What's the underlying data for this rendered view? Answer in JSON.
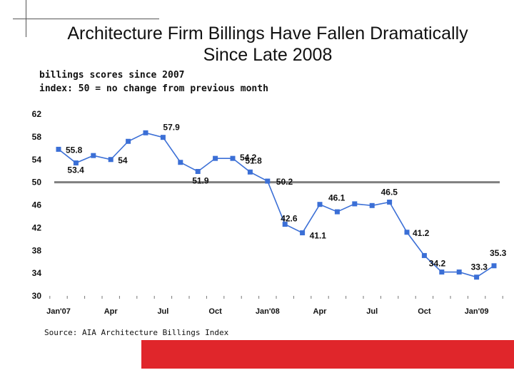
{
  "slide": {
    "title_line1": "Architecture Firm Billings Have Fallen Dramatically",
    "title_line2": "Since Late 2008",
    "subtitle_line1": "billings scores since 2007",
    "subtitle_line2": "index: 50 = no change from previous month",
    "source": "Source: AIA Architecture Billings Index",
    "accent_color": "#e0262b"
  },
  "chart_data": {
    "type": "line",
    "title": "",
    "xlabel": "",
    "ylabel": "",
    "ylim": [
      30,
      62
    ],
    "yticks": [
      30,
      34,
      38,
      42,
      46,
      50,
      54,
      58,
      62
    ],
    "reference_line": {
      "value": 50,
      "color": "#808080"
    },
    "grid": false,
    "x_tick_labels": [
      {
        "label": "Jan'07",
        "index": 0
      },
      {
        "label": "Apr",
        "index": 3
      },
      {
        "label": "Jul",
        "index": 6
      },
      {
        "label": "Oct",
        "index": 9
      },
      {
        "label": "Jan'08",
        "index": 12
      },
      {
        "label": "Apr",
        "index": 15
      },
      {
        "label": "Jul",
        "index": 18
      },
      {
        "label": "Oct",
        "index": 21
      },
      {
        "label": "Jan'09",
        "index": 24
      }
    ],
    "series": [
      {
        "color": "#3b6fd6",
        "values": [
          55.8,
          53.4,
          54.7,
          54,
          57.2,
          58.7,
          57.9,
          53.5,
          51.9,
          54.2,
          54.2,
          51.8,
          50.2,
          42.6,
          41.1,
          46.1,
          44.8,
          46.2,
          45.9,
          46.5,
          41.2,
          37.1,
          34.2,
          34.2,
          33.3,
          35.3
        ]
      }
    ],
    "data_labels": [
      {
        "index": 0,
        "text": "55.8"
      },
      {
        "index": 1,
        "text": "53.4"
      },
      {
        "index": 3,
        "text": "54"
      },
      {
        "index": 6,
        "text": "57.9"
      },
      {
        "index": 8,
        "text": "51.9"
      },
      {
        "index": 10,
        "text": "54.2"
      },
      {
        "index": 11,
        "text": "51.8"
      },
      {
        "index": 12,
        "text": "50.2"
      },
      {
        "index": 13,
        "text": "42.6"
      },
      {
        "index": 14,
        "text": "41.1"
      },
      {
        "index": 15,
        "text": "46.1"
      },
      {
        "index": 19,
        "text": "46.5"
      },
      {
        "index": 20,
        "text": "41.2"
      },
      {
        "index": 22,
        "text": "34.2"
      },
      {
        "index": 24,
        "text": "33.3"
      },
      {
        "index": 25,
        "text": "35.3"
      }
    ]
  }
}
